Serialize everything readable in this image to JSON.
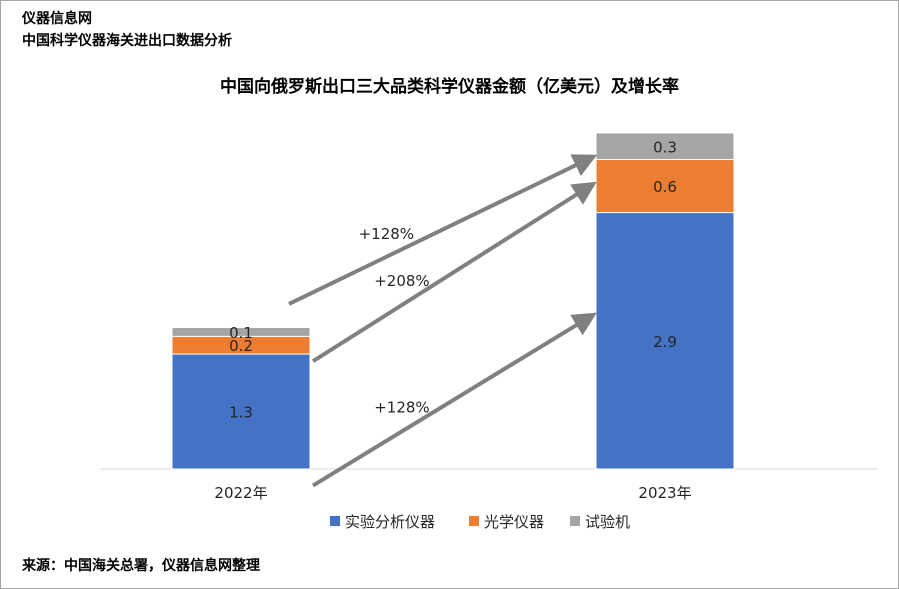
{
  "header": {
    "site_name": "仪器信息网",
    "subtitle": "中国科学仪器海关进出口数据分析"
  },
  "footer": {
    "source": "来源：中国海关总署，仪器信息网整理"
  },
  "chart_data": {
    "type": "bar",
    "stacked": true,
    "title": "中国向俄罗斯出口三大品类科学仪器金额（亿美元）及增长率",
    "xlabel": "",
    "ylabel": "",
    "categories": [
      "2022年",
      "2023年"
    ],
    "series": [
      {
        "name": "实验分析仪器",
        "values": [
          1.3,
          2.9
        ],
        "labels": [
          "1.3",
          "2.9"
        ],
        "color": "#4472c4"
      },
      {
        "name": "光学仪器",
        "values": [
          0.2,
          0.6
        ],
        "labels": [
          "0.2",
          "0.6"
        ],
        "color": "#ed7d31"
      },
      {
        "name": "试验机",
        "values": [
          0.1,
          0.3
        ],
        "labels": [
          "0.1",
          "0.3"
        ],
        "color": "#a5a5a5"
      }
    ],
    "growth_annotations": [
      {
        "series": "试验机",
        "label": "+128%"
      },
      {
        "series": "光学仪器",
        "label": "+208%"
      },
      {
        "series": "实验分析仪器",
        "label": "+128%"
      }
    ],
    "legend_position": "bottom",
    "grid": false,
    "arrow_color": "#808080"
  }
}
